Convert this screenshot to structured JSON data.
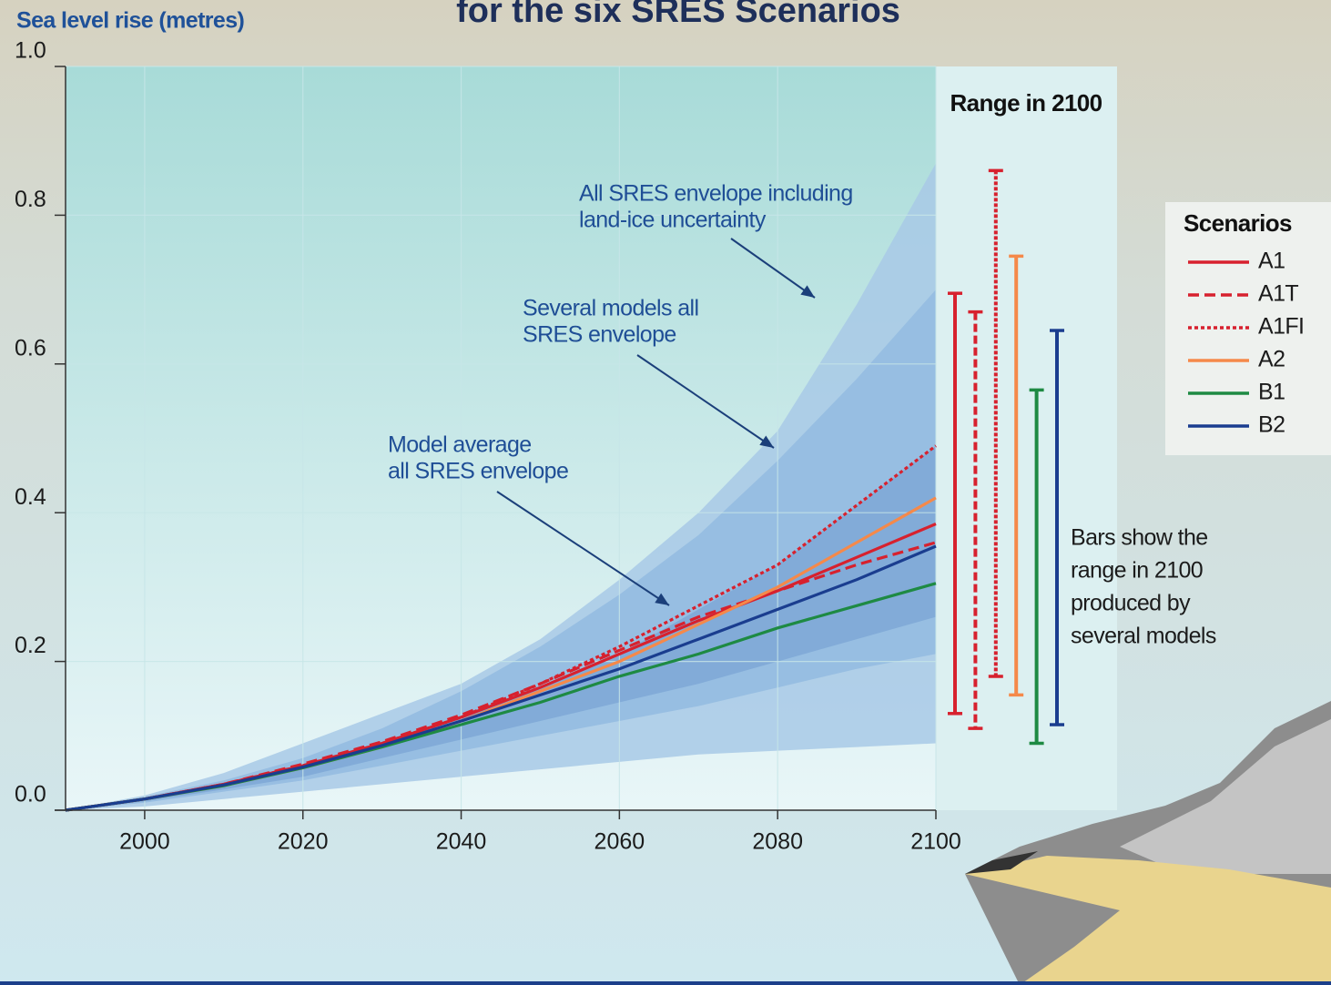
{
  "chart_data": {
    "type": "line",
    "title": "for the six SRES Scenarios",
    "y_label": "Sea level rise (metres)",
    "x": [
      1990,
      2000,
      2010,
      2020,
      2030,
      2040,
      2050,
      2060,
      2070,
      2080,
      2090,
      2100
    ],
    "xlim": [
      1990,
      2100
    ],
    "xticks": [
      2000,
      2020,
      2040,
      2060,
      2080,
      2100
    ],
    "ylim": [
      0,
      1
    ],
    "yticks": [
      {
        "value": 0,
        "label": "0.0"
      },
      0.2,
      0.4,
      0.6,
      0.8,
      {
        "value": 1,
        "label": "1.0"
      }
    ],
    "grid": true,
    "envelopes": [
      {
        "label": [
          "All SRES envelope including",
          "land-ice uncertainty"
        ],
        "color": "#a8c9e6",
        "upper": [
          0,
          0.02,
          0.05,
          0.09,
          0.13,
          0.17,
          0.23,
          0.31,
          0.4,
          0.51,
          0.68,
          0.87
        ],
        "lower": [
          0,
          0.005,
          0.015,
          0.025,
          0.035,
          0.045,
          0.055,
          0.065,
          0.075,
          0.08,
          0.085,
          0.09
        ]
      },
      {
        "label": [
          "Several models all",
          "SRES envelope"
        ],
        "color": "#93bbe0",
        "upper": [
          0,
          0.018,
          0.04,
          0.07,
          0.11,
          0.16,
          0.22,
          0.29,
          0.37,
          0.47,
          0.58,
          0.7
        ],
        "lower": [
          0,
          0.01,
          0.025,
          0.04,
          0.06,
          0.08,
          0.1,
          0.12,
          0.14,
          0.165,
          0.19,
          0.21
        ]
      },
      {
        "label": [
          "Model average",
          "all SRES envelope"
        ],
        "color": "#7ea8d6",
        "upper": [
          0,
          0.016,
          0.035,
          0.06,
          0.09,
          0.125,
          0.165,
          0.21,
          0.27,
          0.33,
          0.41,
          0.49
        ],
        "lower": [
          0,
          0.012,
          0.028,
          0.045,
          0.07,
          0.095,
          0.12,
          0.145,
          0.17,
          0.2,
          0.23,
          0.26
        ]
      }
    ],
    "range_title": "Range in 2100",
    "range_note": [
      "Bars show  the",
      "range in 2100",
      "produced by",
      "several models"
    ],
    "legend_title": "Scenarios",
    "series": [
      {
        "name": "A1",
        "color": "#d7212e",
        "dash": "solid",
        "values": [
          0,
          0.015,
          0.035,
          0.06,
          0.09,
          0.125,
          0.165,
          0.21,
          0.255,
          0.295,
          0.34,
          0.385
        ],
        "range": [
          0.13,
          0.695
        ]
      },
      {
        "name": "A1T",
        "color": "#d7212e",
        "dash": "dashed",
        "values": [
          0,
          0.015,
          0.035,
          0.062,
          0.092,
          0.128,
          0.17,
          0.215,
          0.26,
          0.295,
          0.33,
          0.36
        ],
        "range": [
          0.11,
          0.67
        ]
      },
      {
        "name": "A1FI",
        "color": "#d7212e",
        "dash": "dotted",
        "values": [
          0,
          0.015,
          0.035,
          0.06,
          0.09,
          0.125,
          0.17,
          0.22,
          0.275,
          0.33,
          0.41,
          0.49
        ],
        "range": [
          0.18,
          0.86
        ]
      },
      {
        "name": "A2",
        "color": "#f5894a",
        "dash": "solid",
        "values": [
          0,
          0.015,
          0.033,
          0.057,
          0.085,
          0.12,
          0.16,
          0.2,
          0.25,
          0.3,
          0.36,
          0.42
        ],
        "range": [
          0.155,
          0.745
        ]
      },
      {
        "name": "B1",
        "color": "#1e8a43",
        "dash": "solid",
        "values": [
          0,
          0.015,
          0.033,
          0.057,
          0.085,
          0.115,
          0.145,
          0.18,
          0.21,
          0.245,
          0.275,
          0.305
        ],
        "range": [
          0.09,
          0.565
        ]
      },
      {
        "name": "B2",
        "color": "#1a3d8f",
        "dash": "solid",
        "values": [
          0,
          0.015,
          0.034,
          0.058,
          0.087,
          0.12,
          0.155,
          0.19,
          0.23,
          0.27,
          0.31,
          0.355
        ],
        "range": [
          0.115,
          0.645
        ]
      }
    ]
  }
}
